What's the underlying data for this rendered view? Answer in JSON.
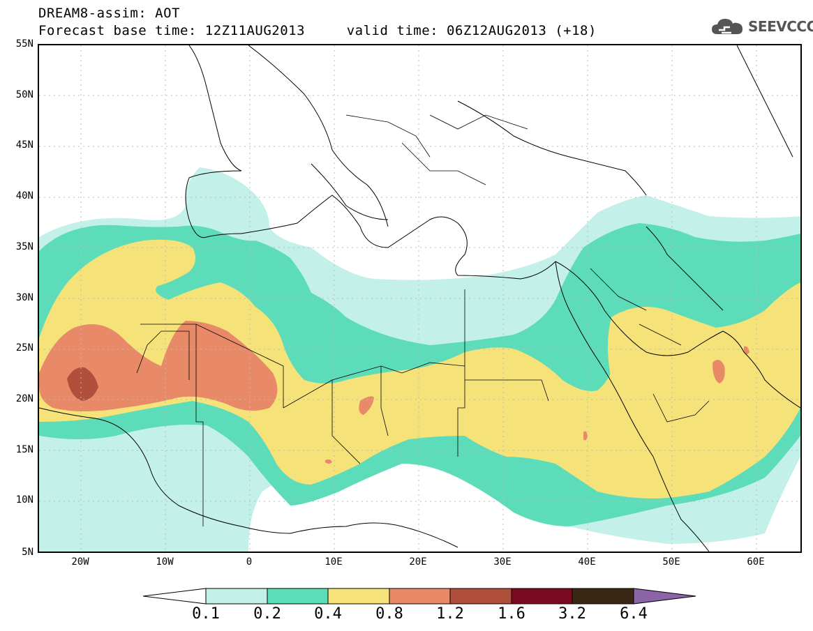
{
  "header": {
    "line1": "DREAM8-assim: AOT",
    "line2": "Forecast base time: 12Z11AUG2013     valid time: 06Z12AUG2013 (+18)"
  },
  "logo": {
    "text": "SEEVCCC",
    "icon": "cloud-icon"
  },
  "axes": {
    "y_labels": [
      "55N",
      "50N",
      "45N",
      "40N",
      "35N",
      "30N",
      "25N",
      "20N",
      "15N",
      "10N",
      "5N"
    ],
    "x_labels": [
      "20W",
      "10W",
      "0",
      "10E",
      "20E",
      "30E",
      "40E",
      "50E",
      "60E"
    ],
    "lon_range": [
      -25,
      65
    ],
    "lat_range": [
      5,
      55
    ]
  },
  "colorbar": {
    "labels": [
      "0.1",
      "0.2",
      "0.4",
      "0.8",
      "1.2",
      "1.6",
      "3.2",
      "6.4"
    ],
    "colors": [
      "#ffffff",
      "#c4f0ea",
      "#5cdcb8",
      "#f5e37a",
      "#e88a68",
      "#b0503c",
      "#7a0a20",
      "#3a2814",
      "#8c64a8"
    ]
  },
  "legend_colors": {
    "c1": "#c4f0ea",
    "c2": "#5cdcb8",
    "c3": "#f5e37a",
    "c4": "#e88a68",
    "c5": "#b0503c"
  }
}
